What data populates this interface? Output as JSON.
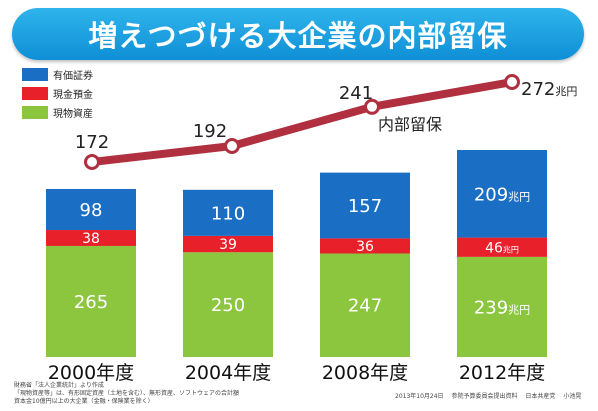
{
  "title": "増えつづける大企業の内部留保",
  "colors": {
    "title_bg": "#1a9fe0",
    "securities": "#1a6fc4",
    "cash": "#e8202a",
    "physical": "#8cc63f",
    "line": "#b03040"
  },
  "legend": [
    "有価証券",
    "現金預金",
    "現物資産"
  ],
  "chart_data": {
    "type": "bar",
    "categories": [
      "2000年度",
      "2004年度",
      "2008年度",
      "2012年度"
    ],
    "series": [
      {
        "name": "現物資産",
        "values": [
          265,
          250,
          247,
          239
        ],
        "labels": [
          "265",
          "250",
          "247",
          "239兆円"
        ]
      },
      {
        "name": "現金預金",
        "values": [
          38,
          39,
          36,
          46
        ],
        "labels": [
          "38",
          "39",
          "36",
          "46兆円"
        ]
      },
      {
        "name": "有価証券",
        "values": [
          98,
          110,
          157,
          209
        ],
        "labels": [
          "98",
          "110",
          "157",
          "209兆円"
        ]
      }
    ],
    "line": {
      "name": "内部留保",
      "values": [
        172,
        192,
        241,
        272
      ],
      "labels": [
        "172",
        "192",
        "241",
        "272兆円"
      ]
    }
  },
  "footnotes": {
    "left": [
      "財務省「法人企業統計」より作成",
      "「現物資産等」は、有形固定資産（土地を含む）、無形資産、ソフトウェアの合計額",
      "資本金10億円以上の大企業（金融・保険業を除く）"
    ],
    "date": "2013年10月24日",
    "source": "参院予算委員会提出資料",
    "party": "日本共産党",
    "person": "小池晃"
  }
}
